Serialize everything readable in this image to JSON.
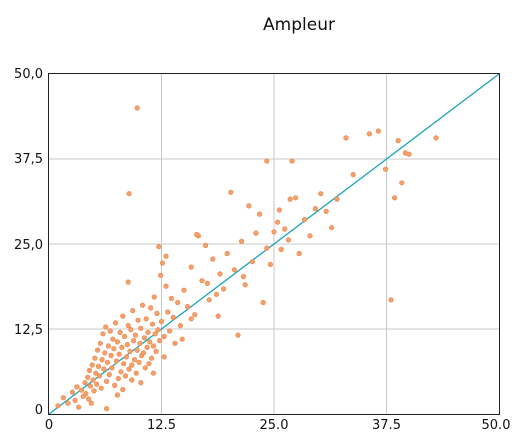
{
  "chart_data": {
    "type": "scatter",
    "title": "Ampleur",
    "xlabel": "",
    "ylabel": "",
    "xlim": [
      0,
      50
    ],
    "ylim": [
      0,
      50
    ],
    "x_ticks": [
      "0",
      "12.5",
      "25.0",
      "37.5",
      "50.0"
    ],
    "y_ticks": [
      "0",
      "12,5",
      "25,0",
      "37,5",
      "50,0"
    ],
    "grid": true,
    "colors": {
      "points": "#f4a06a",
      "point_edge": "#e8854a",
      "reference_line": "#1aa3b8",
      "grid": "#c8c8c8",
      "frame": "#222222"
    },
    "reference_line": {
      "x": [
        0,
        50
      ],
      "y": [
        0,
        50
      ]
    },
    "series": [
      {
        "points": [
          [
            1.0,
            1.2
          ],
          [
            1.6,
            2.4
          ],
          [
            2.1,
            1.6
          ],
          [
            2.6,
            3.2
          ],
          [
            2.9,
            2.0
          ],
          [
            3.1,
            4.0
          ],
          [
            3.3,
            1.0
          ],
          [
            3.6,
            3.5
          ],
          [
            3.8,
            2.6
          ],
          [
            4.0,
            4.6
          ],
          [
            4.1,
            3.0
          ],
          [
            4.3,
            5.4
          ],
          [
            4.4,
            2.2
          ],
          [
            4.5,
            6.4
          ],
          [
            4.6,
            4.1
          ],
          [
            4.7,
            1.6
          ],
          [
            4.8,
            7.2
          ],
          [
            4.9,
            5.0
          ],
          [
            5.0,
            3.4
          ],
          [
            5.1,
            8.2
          ],
          [
            5.2,
            6.0
          ],
          [
            5.3,
            4.4
          ],
          [
            5.4,
            9.4
          ],
          [
            5.5,
            7.0
          ],
          [
            5.6,
            5.6
          ],
          [
            5.7,
            10.4
          ],
          [
            5.8,
            3.8
          ],
          [
            5.9,
            8.0
          ],
          [
            6.0,
            11.8
          ],
          [
            6.1,
            6.6
          ],
          [
            6.2,
            9.0
          ],
          [
            6.3,
            12.8
          ],
          [
            6.4,
            4.8
          ],
          [
            6.5,
            7.6
          ],
          [
            6.6,
            10.0
          ],
          [
            6.7,
            5.8
          ],
          [
            6.8,
            12.2
          ],
          [
            6.9,
            8.6
          ],
          [
            7.0,
            6.8
          ],
          [
            7.1,
            11.0
          ],
          [
            7.2,
            9.6
          ],
          [
            7.3,
            4.2
          ],
          [
            7.4,
            13.4
          ],
          [
            7.5,
            7.8
          ],
          [
            7.6,
            10.6
          ],
          [
            7.7,
            5.2
          ],
          [
            7.8,
            8.8
          ],
          [
            7.9,
            12.0
          ],
          [
            8.0,
            6.2
          ],
          [
            8.1,
            9.8
          ],
          [
            8.2,
            14.4
          ],
          [
            8.3,
            7.4
          ],
          [
            8.4,
            11.4
          ],
          [
            8.5,
            5.6
          ],
          [
            8.6,
            8.4
          ],
          [
            8.7,
            10.2
          ],
          [
            8.8,
            13.0
          ],
          [
            8.9,
            6.6
          ],
          [
            9.0,
            9.2
          ],
          [
            9.1,
            12.4
          ],
          [
            9.2,
            7.2
          ],
          [
            9.3,
            15.2
          ],
          [
            9.4,
            10.8
          ],
          [
            9.5,
            8.0
          ],
          [
            9.6,
            11.6
          ],
          [
            9.7,
            6.0
          ],
          [
            9.8,
            9.4
          ],
          [
            9.9,
            13.8
          ],
          [
            10.0,
            7.6
          ],
          [
            10.1,
            10.4
          ],
          [
            10.2,
            12.6
          ],
          [
            10.3,
            8.6
          ],
          [
            10.4,
            16.0
          ],
          [
            10.5,
            9.0
          ],
          [
            10.6,
            11.2
          ],
          [
            10.7,
            6.8
          ],
          [
            10.8,
            14.0
          ],
          [
            10.9,
            9.8
          ],
          [
            11.0,
            12.0
          ],
          [
            11.1,
            7.4
          ],
          [
            11.2,
            10.6
          ],
          [
            11.3,
            15.6
          ],
          [
            11.4,
            8.2
          ],
          [
            11.5,
            13.2
          ],
          [
            11.6,
            10.0
          ],
          [
            11.7,
            17.2
          ],
          [
            11.8,
            11.8
          ],
          [
            11.9,
            9.2
          ],
          [
            12.0,
            14.8
          ],
          [
            12.1,
            12.4
          ],
          [
            12.2,
            24.6
          ],
          [
            12.3,
            10.8
          ],
          [
            12.4,
            20.4
          ],
          [
            12.5,
            13.6
          ],
          [
            12.6,
            22.2
          ],
          [
            12.8,
            11.4
          ],
          [
            13.0,
            18.8
          ],
          [
            13.2,
            15.0
          ],
          [
            13.4,
            12.2
          ],
          [
            13.6,
            17.0
          ],
          [
            13.8,
            14.2
          ],
          [
            14.0,
            10.4
          ],
          [
            14.3,
            16.4
          ],
          [
            14.6,
            13.0
          ],
          [
            15.0,
            18.2
          ],
          [
            15.4,
            15.8
          ],
          [
            15.8,
            21.6
          ],
          [
            16.2,
            14.6
          ],
          [
            16.6,
            26.2
          ],
          [
            17.0,
            19.6
          ],
          [
            17.4,
            24.8
          ],
          [
            17.8,
            16.8
          ],
          [
            18.2,
            22.8
          ],
          [
            18.6,
            17.6
          ],
          [
            19.0,
            20.6
          ],
          [
            19.4,
            18.4
          ],
          [
            19.8,
            23.6
          ],
          [
            20.2,
            32.6
          ],
          [
            20.6,
            21.2
          ],
          [
            21.0,
            11.6
          ],
          [
            21.4,
            25.4
          ],
          [
            21.8,
            19.0
          ],
          [
            22.2,
            30.6
          ],
          [
            22.6,
            22.4
          ],
          [
            23.0,
            26.6
          ],
          [
            23.4,
            29.4
          ],
          [
            23.8,
            16.4
          ],
          [
            24.2,
            24.4
          ],
          [
            24.6,
            22.0
          ],
          [
            25.0,
            26.8
          ],
          [
            25.4,
            28.2
          ],
          [
            25.8,
            24.2
          ],
          [
            26.2,
            27.2
          ],
          [
            26.6,
            25.6
          ],
          [
            27.0,
            37.2
          ],
          [
            27.4,
            31.8
          ],
          [
            27.8,
            23.6
          ],
          [
            28.4,
            28.6
          ],
          [
            29.0,
            26.2
          ],
          [
            29.6,
            30.2
          ],
          [
            30.2,
            32.4
          ],
          [
            30.8,
            29.8
          ],
          [
            31.4,
            27.4
          ],
          [
            32.0,
            31.6
          ],
          [
            33.0,
            40.6
          ],
          [
            33.8,
            35.2
          ],
          [
            35.6,
            41.2
          ],
          [
            36.6,
            41.6
          ],
          [
            37.4,
            36.0
          ],
          [
            38.0,
            16.8
          ],
          [
            38.4,
            31.8
          ],
          [
            38.8,
            40.2
          ],
          [
            39.2,
            34.0
          ],
          [
            39.6,
            38.4
          ],
          [
            40.0,
            38.2
          ],
          [
            43.0,
            40.6
          ],
          [
            9.8,
            45.0
          ],
          [
            8.9,
            32.4
          ],
          [
            8.8,
            19.4
          ],
          [
            24.2,
            37.2
          ],
          [
            26.8,
            31.6
          ],
          [
            16.4,
            26.4
          ],
          [
            13.0,
            23.2
          ],
          [
            18.8,
            14.4
          ],
          [
            21.6,
            20.2
          ],
          [
            25.6,
            30.0
          ],
          [
            6.4,
            0.8
          ],
          [
            7.6,
            2.8
          ],
          [
            8.2,
            3.6
          ],
          [
            9.2,
            5.0
          ],
          [
            10.2,
            4.6
          ],
          [
            11.6,
            6.0
          ],
          [
            12.8,
            8.4
          ],
          [
            14.8,
            11.0
          ],
          [
            15.8,
            14.0
          ],
          [
            17.6,
            19.2
          ]
        ]
      }
    ]
  }
}
